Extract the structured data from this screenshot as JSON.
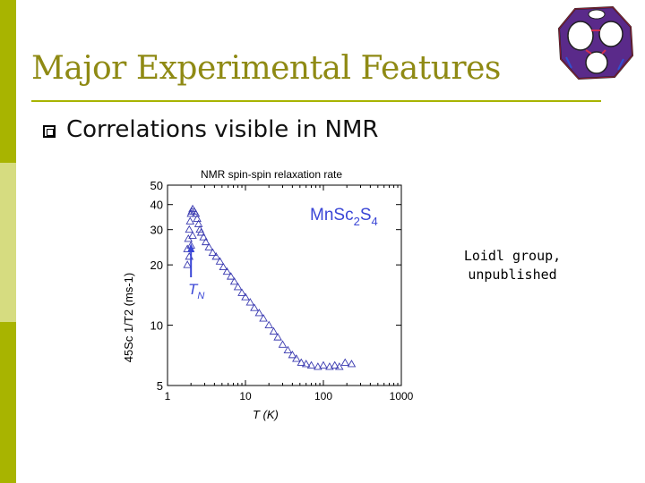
{
  "slide": {
    "title": "Major Experimental Features",
    "bullet": "Correlations visible in NMR",
    "note_lines": [
      "Loidl group,",
      "unpublished"
    ],
    "accent_color": "#a8b400",
    "title_color": "#8f8a14",
    "logo_icon": "cuboctahedron-lattice-icon"
  },
  "chart_data": {
    "type": "scatter",
    "title": "NMR spin-spin relaxation rate",
    "xlabel": "T  (K)",
    "ylabel": "45Sc  1/T2  (ms-1)",
    "xscale": "log",
    "yscale": "log",
    "xlim": [
      1,
      1000
    ],
    "ylim": [
      5,
      50
    ],
    "x_ticks": [
      1,
      10,
      100,
      1000
    ],
    "x_tick_labels": [
      "1",
      "10",
      "100",
      "1000"
    ],
    "y_ticks": [
      5,
      10,
      20,
      30,
      40,
      50
    ],
    "y_tick_labels": [
      "5",
      "10",
      "20",
      "30",
      "40",
      "50"
    ],
    "marker": "open-triangle",
    "series_color": "#3a3ab0",
    "label_color": "#3a46d6",
    "compound": "MnSc2S4",
    "compound_parts": [
      [
        "Mn",
        "Sc",
        "2",
        "S",
        "4"
      ]
    ],
    "transition_label": "TN",
    "transition_T": 2.0,
    "series": [
      {
        "name": "MnSc2S4",
        "points": [
          [
            1.8,
            24
          ],
          [
            1.85,
            27
          ],
          [
            1.9,
            30
          ],
          [
            1.95,
            33
          ],
          [
            2.0,
            36
          ],
          [
            2.05,
            37
          ],
          [
            2.1,
            38
          ],
          [
            2.2,
            37
          ],
          [
            2.3,
            36
          ],
          [
            2.4,
            34
          ],
          [
            2.5,
            32
          ],
          [
            2.6,
            30
          ],
          [
            2.7,
            29
          ],
          [
            2.9,
            27.5
          ],
          [
            3.1,
            26
          ],
          [
            3.4,
            24.5
          ],
          [
            3.8,
            23
          ],
          [
            4.2,
            22
          ],
          [
            4.7,
            20.8
          ],
          [
            5.2,
            19.5
          ],
          [
            5.8,
            18.5
          ],
          [
            6.5,
            17.5
          ],
          [
            7.2,
            16.5
          ],
          [
            8.0,
            15.5
          ],
          [
            9.0,
            14.5
          ],
          [
            10.0,
            13.8
          ],
          [
            11.5,
            13.0
          ],
          [
            13.0,
            12.2
          ],
          [
            15.0,
            11.5
          ],
          [
            17.0,
            10.8
          ],
          [
            20.0,
            10.0
          ],
          [
            23.0,
            9.3
          ],
          [
            26.0,
            8.7
          ],
          [
            30.0,
            8.0
          ],
          [
            35.0,
            7.5
          ],
          [
            40.0,
            7.1
          ],
          [
            45.0,
            6.8
          ],
          [
            52.0,
            6.5
          ],
          [
            60.0,
            6.4
          ],
          [
            70.0,
            6.3
          ],
          [
            85.0,
            6.2
          ],
          [
            100.0,
            6.3
          ],
          [
            120.0,
            6.2
          ],
          [
            140.0,
            6.3
          ],
          [
            160.0,
            6.2
          ],
          [
            190.0,
            6.5
          ],
          [
            230.0,
            6.4
          ],
          [
            1.8,
            20
          ],
          [
            1.9,
            22
          ],
          [
            2.0,
            25
          ],
          [
            2.1,
            28
          ]
        ]
      }
    ]
  }
}
